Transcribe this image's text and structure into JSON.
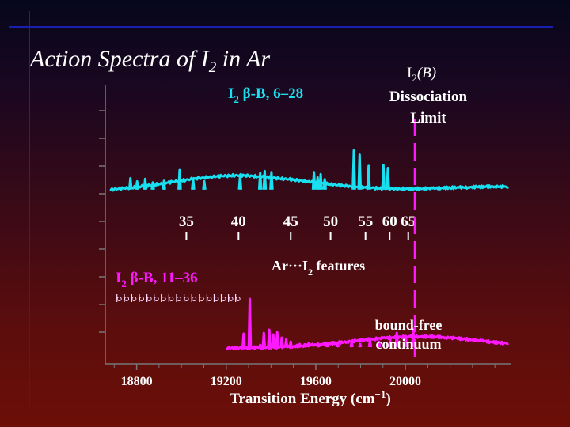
{
  "slide": {
    "title_prefix": "Action Spectra of I",
    "title_sub": "2",
    "title_suffix": " in Ar"
  },
  "chart_data": {
    "type": "line",
    "xlabel": "Transition Energy (cm",
    "xlabel_exp": "−1",
    "xlabel_close": ")",
    "x_ticks": [
      18800,
      19200,
      19600,
      20000
    ],
    "xlim": [
      18660,
      20470
    ],
    "series": [
      {
        "name": "I2 β-B, 6–28",
        "color": "#19e0f0",
        "points": [
          [
            18680,
            4.0
          ],
          [
            18700,
            4.4
          ],
          [
            18720,
            4.8
          ],
          [
            18740,
            5.2
          ],
          [
            18760,
            5.6
          ],
          [
            18780,
            6.0
          ],
          [
            18800,
            6.6
          ],
          [
            18820,
            7.0
          ],
          [
            18840,
            7.6
          ],
          [
            18860,
            8.2
          ],
          [
            18880,
            8.8
          ],
          [
            18900,
            9.4
          ],
          [
            18920,
            10.0
          ],
          [
            18940,
            10.8
          ],
          [
            18960,
            11.4
          ],
          [
            18980,
            12.0
          ],
          [
            19000,
            12.8
          ],
          [
            19020,
            13.4
          ],
          [
            19040,
            14.0
          ],
          [
            19060,
            14.6
          ],
          [
            19080,
            15.0
          ],
          [
            19100,
            15.6
          ],
          [
            19120,
            16.0
          ],
          [
            19140,
            16.4
          ],
          [
            19160,
            16.8
          ],
          [
            19180,
            17.2
          ],
          [
            19200,
            17.4
          ],
          [
            19220,
            17.6
          ],
          [
            19240,
            17.8
          ],
          [
            19260,
            17.8
          ],
          [
            19280,
            17.6
          ],
          [
            19300,
            17.4
          ],
          [
            19320,
            17.2
          ],
          [
            19340,
            16.8
          ],
          [
            19360,
            16.4
          ],
          [
            19380,
            16.0
          ],
          [
            19400,
            15.6
          ],
          [
            19420,
            15.2
          ],
          [
            19440,
            14.8
          ],
          [
            19460,
            14.4
          ],
          [
            19480,
            14.0
          ],
          [
            19500,
            13.4
          ],
          [
            19520,
            13.0
          ],
          [
            19540,
            12.6
          ],
          [
            19560,
            12.0
          ],
          [
            19580,
            11.6
          ],
          [
            19600,
            11.0
          ],
          [
            19620,
            10.4
          ],
          [
            19640,
            10.0
          ],
          [
            19660,
            9.4
          ],
          [
            19680,
            8.8
          ],
          [
            19700,
            8.4
          ],
          [
            19720,
            7.8
          ],
          [
            19740,
            7.4
          ],
          [
            19760,
            7.0
          ],
          [
            19780,
            6.6
          ],
          [
            19800,
            6.2
          ],
          [
            19820,
            6.0
          ],
          [
            19840,
            5.8
          ],
          [
            19860,
            5.6
          ],
          [
            19880,
            5.4
          ],
          [
            19900,
            5.2
          ],
          [
            19920,
            5.0
          ],
          [
            19940,
            4.9
          ],
          [
            19960,
            4.8
          ],
          [
            19980,
            4.8
          ],
          [
            20000,
            4.7
          ],
          [
            20040,
            4.8
          ],
          [
            20080,
            5.0
          ],
          [
            20120,
            5.2
          ],
          [
            20160,
            5.6
          ],
          [
            20200,
            5.8
          ],
          [
            20240,
            6.0
          ],
          [
            20280,
            6.2
          ],
          [
            20320,
            6.6
          ],
          [
            20360,
            6.8
          ],
          [
            20400,
            7.0
          ],
          [
            20440,
            6.8
          ],
          [
            20460,
            6.4
          ]
        ],
        "peaks": [
          [
            18772,
            15.0
          ],
          [
            18802,
            12.0
          ],
          [
            18838,
            14.5
          ],
          [
            18872,
            11.0
          ],
          [
            18922,
            12.5
          ],
          [
            18992,
            23.0
          ],
          [
            19052,
            14.5
          ],
          [
            19102,
            12.0
          ],
          [
            19262,
            17.0
          ],
          [
            19352,
            20.0
          ],
          [
            19372,
            22.0
          ],
          [
            19402,
            21.0
          ],
          [
            19592,
            21.0
          ],
          [
            19608,
            16.0
          ],
          [
            19622,
            19.0
          ],
          [
            19640,
            14.0
          ],
          [
            19770,
            42.0
          ],
          [
            19796,
            38.0
          ],
          [
            19836,
            27.0
          ],
          [
            19902,
            28.0
          ],
          [
            19922,
            25.0
          ]
        ]
      },
      {
        "name": "I2 β-B, 11–36",
        "color": "#ff19ff",
        "points": [
          [
            19200,
            3.0
          ],
          [
            19260,
            3.0
          ],
          [
            19300,
            3.2
          ],
          [
            19340,
            3.4
          ],
          [
            19380,
            3.6
          ],
          [
            19420,
            4.0
          ],
          [
            19460,
            4.4
          ],
          [
            19500,
            5.0
          ],
          [
            19540,
            5.8
          ],
          [
            19580,
            6.6
          ],
          [
            19620,
            7.6
          ],
          [
            19660,
            8.6
          ],
          [
            19700,
            9.6
          ],
          [
            19740,
            10.8
          ],
          [
            19780,
            12.0
          ],
          [
            19820,
            13.2
          ],
          [
            19860,
            14.4
          ],
          [
            19900,
            15.4
          ],
          [
            19940,
            16.2
          ],
          [
            19980,
            16.8
          ],
          [
            20020,
            17.2
          ],
          [
            20060,
            17.4
          ],
          [
            20100,
            17.2
          ],
          [
            20140,
            16.8
          ],
          [
            20180,
            16.2
          ],
          [
            20220,
            15.4
          ],
          [
            20260,
            14.4
          ],
          [
            20300,
            13.2
          ],
          [
            20340,
            12.0
          ],
          [
            20380,
            10.8
          ],
          [
            20420,
            9.6
          ],
          [
            20440,
            9.0
          ],
          [
            20460,
            9.0
          ]
        ],
        "peaks": [
          [
            19278,
            21.0
          ],
          [
            19305,
            65.0
          ],
          [
            19326,
            5.0
          ],
          [
            19352,
            7.0
          ],
          [
            19368,
            22.0
          ],
          [
            19392,
            26.0
          ],
          [
            19410,
            20.0
          ],
          [
            19428,
            23.0
          ],
          [
            19448,
            16.0
          ],
          [
            19468,
            14.0
          ],
          [
            19488,
            11.0
          ],
          [
            19528,
            8.0
          ],
          [
            19568,
            9.0
          ],
          [
            19612,
            7.0
          ],
          [
            19652,
            9.0
          ],
          [
            19698,
            8.0
          ],
          [
            19760,
            10.0
          ],
          [
            19798,
            8.0
          ],
          [
            19842,
            12.0
          ],
          [
            19882,
            11.0
          ],
          [
            19932,
            13.0
          ],
          [
            19962,
            22.0
          ],
          [
            20002,
            18.0
          ],
          [
            20035,
            27.0
          ]
        ]
      }
    ],
    "annotations": {
      "top_series_label": "I",
      "top_series_label_sub": "2",
      "top_series_label_rest": " β-B, 6–28",
      "bottom_series_label": "I",
      "bottom_series_label_sub": "2",
      "bottom_series_label_rest": " β-B, 11–36",
      "diss_state": "I",
      "diss_state_sub": "2",
      "diss_state_rest": "(B)",
      "diss_line1": "Dissociation",
      "diss_line2": "Limit",
      "complex_prefix": "Ar···I",
      "complex_sub": "2",
      "complex_suffix": " features",
      "bf_line1": "bound-free",
      "bf_line2": "continuum",
      "diss_limit_x": 20043
    },
    "v_markers": [
      {
        "label": "35",
        "x": 19022
      },
      {
        "label": "40",
        "x": 19255
      },
      {
        "label": "45",
        "x": 19488
      },
      {
        "label": "50",
        "x": 19666
      },
      {
        "label": "55",
        "x": 19822
      },
      {
        "label": "60",
        "x": 19930
      },
      {
        "label": "65",
        "x": 20013
      }
    ],
    "progression_x": [
      18712,
      18745,
      18778,
      18812,
      18846,
      18878,
      18910,
      18944,
      18978,
      19012,
      19046,
      19080,
      19114,
      19146,
      19178,
      19210,
      19242
    ]
  }
}
